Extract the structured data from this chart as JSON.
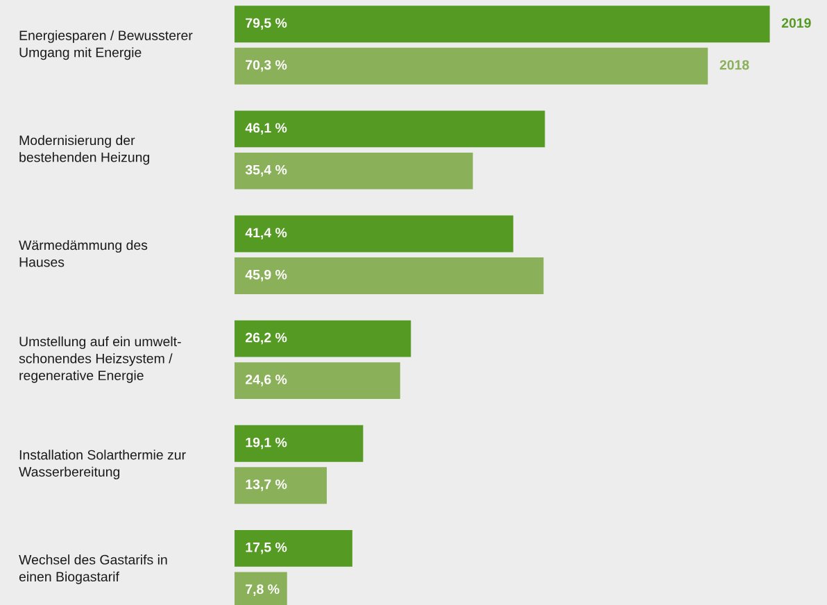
{
  "chart_data": {
    "type": "bar",
    "orientation": "horizontal",
    "legend": false,
    "categories": [
      "Energiesparen / Bewussterer\nUmgang mit Energie",
      "Modernisierung der\nbestehenden Heizung",
      "Wärmedämmung des\nHauses",
      "Umstellung auf ein umwelt-\nschonendes Heizsystem /\nregenerative Energie",
      "Installation Solarthermie zur\nWasserbereitung",
      "Wechsel des Gastarifs in\neinen Biogastarif"
    ],
    "xlim": [
      0,
      88
    ],
    "series": [
      {
        "name": "2019",
        "color": "#559a23",
        "values": [
          79.5,
          46.1,
          41.4,
          26.2,
          19.1,
          17.5
        ],
        "value_labels": [
          "79,5 %",
          "46,1 %",
          "41,4 %",
          "26,2 %",
          "19,1 %",
          "17,5 %"
        ]
      },
      {
        "name": "2018",
        "color": "#8ab05a",
        "values": [
          70.3,
          35.4,
          45.9,
          24.6,
          13.7,
          7.8
        ],
        "value_labels": [
          "70,3 %",
          "35,4 %",
          "45,9 %",
          "24,6 %",
          "13,7 %",
          "7,8 %"
        ]
      }
    ]
  }
}
